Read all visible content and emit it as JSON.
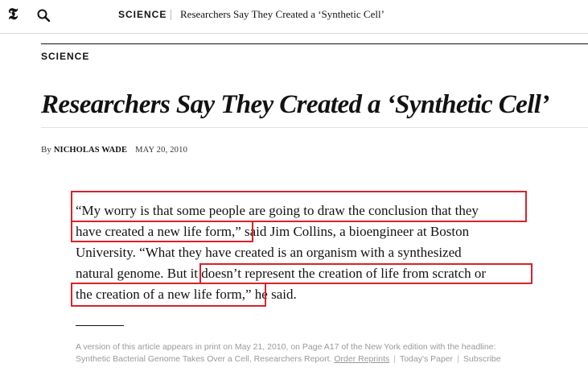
{
  "topbar": {
    "logo_glyph": "𝕿",
    "search_icon": "search-icon",
    "section": "SCIENCE",
    "headline": "Researchers Say They Created a ‘Synthetic Cell’"
  },
  "article": {
    "section": "SCIENCE",
    "headline": "Researchers Say They Created a ‘Synthetic Cell’",
    "byline_prefix": "By",
    "author": "NICHOLAS WADE",
    "date": "MAY 20, 2010",
    "quote_lines": [
      "“My worry is that some people are going to draw the conclusion that they",
      "have created a new life form,” said Jim Collins, a bioengineer at Boston",
      "University. “What they have created is an organism with a synthesized",
      "natural genome. But it doesn’t represent the creation of life from scratch or",
      "the creation of a new life form,” he said."
    ],
    "footnote_line1": "A version of this article appears in print on May 21, 2010, on Page A17 of the New York edition with the headline:",
    "footnote_line2_text": "Synthetic Bacterial Genome Takes Over a Cell, Researchers Report.",
    "order_reprints": "Order Reprints",
    "todays_paper": "Today's Paper",
    "subscribe": "Subscribe",
    "separator": "|"
  },
  "highlight_color": "#d9222a"
}
